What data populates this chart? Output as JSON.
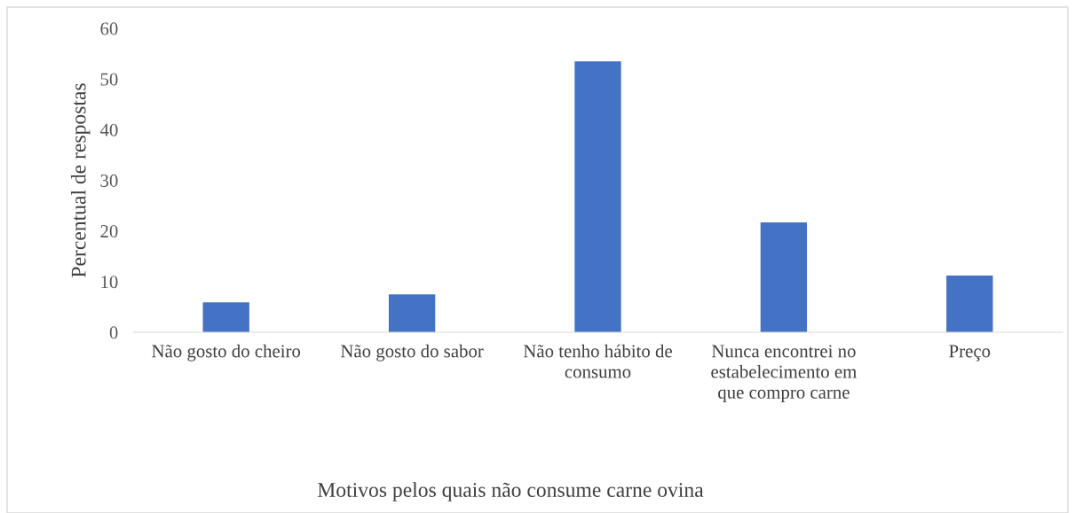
{
  "chart_data": {
    "type": "bar",
    "categories": [
      "Não gosto do cheiro",
      "Não gosto do sabor",
      "Não tenho hábito de consumo",
      "Nunca encontrei no estabelecimento em que compro carne",
      "Preço"
    ],
    "values": [
      5.9,
      7.5,
      53.5,
      21.7,
      11.2
    ],
    "color": "#4472c4",
    "xlabel": "Motivos pelos quais não consume carne ovina",
    "ylabel": "Percentual de respostas",
    "ylim": [
      0,
      60
    ],
    "yticks": [
      0,
      10,
      20,
      30,
      40,
      50,
      60
    ],
    "grid": false
  }
}
